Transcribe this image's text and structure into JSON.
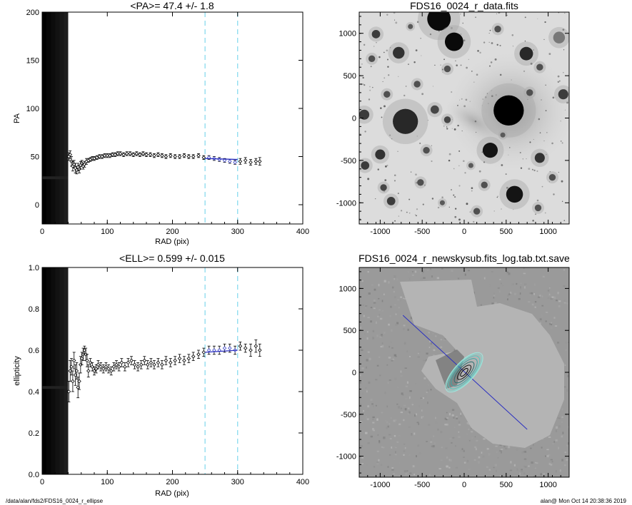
{
  "footer": {
    "left": "/data/alan/fds2/FDS16_0024_r_ellipse",
    "right": "alan@  Mon Oct 14 20:38:36 2019"
  },
  "chart_data": [
    {
      "type": "scatter",
      "title": "<PA>=  47.4 +/-   1.8",
      "xlabel": "RAD (pix)",
      "ylabel": "PA",
      "xlim": [
        0,
        400
      ],
      "ylim": [
        -20,
        200
      ],
      "xticks": [
        "0",
        "100",
        "200",
        "300",
        "400"
      ],
      "yticks": [
        "0",
        "50",
        "100",
        "150",
        "200"
      ],
      "grid": false,
      "vlines": [
        250,
        300
      ],
      "fit_line": {
        "x": [
          250,
          300
        ],
        "y": [
          48,
          47
        ]
      },
      "masked_region": {
        "x": [
          0,
          40
        ]
      },
      "points": [
        {
          "x": 41,
          "y": 50,
          "e": 4
        },
        {
          "x": 43,
          "y": 52,
          "e": 4
        },
        {
          "x": 45,
          "y": 45,
          "e": 5
        },
        {
          "x": 47,
          "y": 40,
          "e": 5
        },
        {
          "x": 49,
          "y": 42,
          "e": 4
        },
        {
          "x": 51,
          "y": 38,
          "e": 5
        },
        {
          "x": 53,
          "y": 36,
          "e": 4
        },
        {
          "x": 55,
          "y": 39,
          "e": 4
        },
        {
          "x": 57,
          "y": 37,
          "e": 4
        },
        {
          "x": 59,
          "y": 41,
          "e": 4
        },
        {
          "x": 61,
          "y": 43,
          "e": 3
        },
        {
          "x": 63,
          "y": 40,
          "e": 3
        },
        {
          "x": 65,
          "y": 42,
          "e": 3
        },
        {
          "x": 68,
          "y": 45,
          "e": 3
        },
        {
          "x": 71,
          "y": 46,
          "e": 2
        },
        {
          "x": 74,
          "y": 47,
          "e": 2
        },
        {
          "x": 77,
          "y": 48,
          "e": 2
        },
        {
          "x": 80,
          "y": 48,
          "e": 2
        },
        {
          "x": 84,
          "y": 49,
          "e": 2
        },
        {
          "x": 88,
          "y": 50,
          "e": 2
        },
        {
          "x": 92,
          "y": 50,
          "e": 2
        },
        {
          "x": 96,
          "y": 51,
          "e": 2
        },
        {
          "x": 100,
          "y": 51,
          "e": 2
        },
        {
          "x": 104,
          "y": 51,
          "e": 2
        },
        {
          "x": 108,
          "y": 52,
          "e": 2
        },
        {
          "x": 112,
          "y": 52,
          "e": 2
        },
        {
          "x": 116,
          "y": 53,
          "e": 2
        },
        {
          "x": 120,
          "y": 53,
          "e": 2
        },
        {
          "x": 125,
          "y": 52,
          "e": 2
        },
        {
          "x": 130,
          "y": 53,
          "e": 2
        },
        {
          "x": 135,
          "y": 53,
          "e": 2
        },
        {
          "x": 140,
          "y": 52,
          "e": 2
        },
        {
          "x": 145,
          "y": 53,
          "e": 2
        },
        {
          "x": 150,
          "y": 52,
          "e": 2
        },
        {
          "x": 155,
          "y": 53,
          "e": 2
        },
        {
          "x": 160,
          "y": 52,
          "e": 2
        },
        {
          "x": 166,
          "y": 52,
          "e": 2
        },
        {
          "x": 172,
          "y": 51,
          "e": 2
        },
        {
          "x": 178,
          "y": 52,
          "e": 2
        },
        {
          "x": 184,
          "y": 51,
          "e": 2
        },
        {
          "x": 190,
          "y": 50,
          "e": 2
        },
        {
          "x": 197,
          "y": 51,
          "e": 2
        },
        {
          "x": 204,
          "y": 50,
          "e": 2
        },
        {
          "x": 211,
          "y": 50,
          "e": 2
        },
        {
          "x": 218,
          "y": 51,
          "e": 2
        },
        {
          "x": 225,
          "y": 50,
          "e": 2
        },
        {
          "x": 232,
          "y": 50,
          "e": 2
        },
        {
          "x": 240,
          "y": 51,
          "e": 2
        },
        {
          "x": 248,
          "y": 49,
          "e": 2
        },
        {
          "x": 256,
          "y": 49,
          "e": 2
        },
        {
          "x": 264,
          "y": 48,
          "e": 2
        },
        {
          "x": 272,
          "y": 47,
          "e": 2
        },
        {
          "x": 280,
          "y": 46,
          "e": 2
        },
        {
          "x": 288,
          "y": 45,
          "e": 2
        },
        {
          "x": 296,
          "y": 44,
          "e": 2
        },
        {
          "x": 304,
          "y": 45,
          "e": 3
        },
        {
          "x": 312,
          "y": 46,
          "e": 3
        },
        {
          "x": 320,
          "y": 44,
          "e": 3
        },
        {
          "x": 328,
          "y": 45,
          "e": 3
        },
        {
          "x": 334,
          "y": 45,
          "e": 4
        }
      ]
    },
    {
      "type": "image",
      "title": "FDS16_0024_r_data.fits",
      "xlim": [
        -1250,
        1250
      ],
      "ylim": [
        -1250,
        1250
      ],
      "xticks": [
        "-1000",
        "-500",
        "0",
        "500",
        "1000"
      ],
      "yticks": [
        "-1000",
        "-500",
        "0",
        "500",
        "1000"
      ],
      "sources": [
        {
          "x": 530,
          "y": 90,
          "r": 18,
          "g": 0
        },
        {
          "x": -300,
          "y": 1170,
          "r": 14,
          "g": 10
        },
        {
          "x": -120,
          "y": 900,
          "r": 11,
          "g": 10
        },
        {
          "x": -700,
          "y": -40,
          "r": 15,
          "g": 40
        },
        {
          "x": 310,
          "y": -380,
          "r": 9,
          "g": 20
        },
        {
          "x": 600,
          "y": -900,
          "r": 10,
          "g": 20
        },
        {
          "x": 740,
          "y": 760,
          "r": 8,
          "g": 40
        },
        {
          "x": -780,
          "y": 770,
          "r": 7,
          "g": 50
        },
        {
          "x": -1050,
          "y": 990,
          "r": 5,
          "g": 60
        },
        {
          "x": 1180,
          "y": 280,
          "r": 6,
          "g": 60
        },
        {
          "x": 900,
          "y": -470,
          "r": 6,
          "g": 50
        },
        {
          "x": -1000,
          "y": -430,
          "r": 6,
          "g": 50
        },
        {
          "x": -1180,
          "y": -560,
          "r": 5,
          "g": 60
        },
        {
          "x": -1190,
          "y": 40,
          "r": 6,
          "g": 60
        },
        {
          "x": -350,
          "y": 100,
          "r": 5,
          "g": 70
        },
        {
          "x": -200,
          "y": -20,
          "r": 4,
          "g": 70
        },
        {
          "x": -520,
          "y": -760,
          "r": 4,
          "g": 80
        },
        {
          "x": -870,
          "y": -980,
          "r": 5,
          "g": 60
        },
        {
          "x": -960,
          "y": -820,
          "r": 4,
          "g": 70
        },
        {
          "x": 240,
          "y": -790,
          "r": 4,
          "g": 80
        },
        {
          "x": 150,
          "y": -1100,
          "r": 4,
          "g": 80
        },
        {
          "x": 880,
          "y": -1060,
          "r": 4,
          "g": 80
        },
        {
          "x": 1130,
          "y": 950,
          "r": 7,
          "g": 120
        },
        {
          "x": 780,
          "y": 300,
          "r": 4,
          "g": 80
        },
        {
          "x": 900,
          "y": 600,
          "r": 4,
          "g": 80
        },
        {
          "x": -200,
          "y": 580,
          "r": 4,
          "g": 80
        },
        {
          "x": -560,
          "y": 400,
          "r": 4,
          "g": 80
        },
        {
          "x": -920,
          "y": 280,
          "r": 4,
          "g": 80
        },
        {
          "x": -450,
          "y": -380,
          "r": 4,
          "g": 80
        },
        {
          "x": 80,
          "y": -560,
          "r": 3,
          "g": 90
        },
        {
          "x": 400,
          "y": 1050,
          "r": 4,
          "g": 80
        },
        {
          "x": -1100,
          "y": 700,
          "r": 4,
          "g": 80
        },
        {
          "x": 1050,
          "y": -700,
          "r": 4,
          "g": 80
        },
        {
          "x": -260,
          "y": -1000,
          "r": 3,
          "g": 90
        },
        {
          "x": 460,
          "y": -200,
          "r": 3,
          "g": 90
        },
        {
          "x": -640,
          "y": 1080,
          "r": 3,
          "g": 90
        }
      ]
    },
    {
      "type": "scatter",
      "title": "<ELL>= 0.599 +/-  0.015",
      "xlabel": "RAD (pix)",
      "ylabel": "ellipticity",
      "xlim": [
        0,
        400
      ],
      "ylim": [
        0,
        1
      ],
      "xticks": [
        "0",
        "100",
        "200",
        "300",
        "400"
      ],
      "yticks": [
        "0.0",
        "0.2",
        "0.4",
        "0.6",
        "0.8",
        "1.0"
      ],
      "grid": false,
      "vlines": [
        250,
        300
      ],
      "fit_line": {
        "x": [
          250,
          300
        ],
        "y": [
          0.59,
          0.6
        ]
      },
      "masked_region": {
        "x": [
          0,
          40
        ]
      },
      "points": [
        {
          "x": 41,
          "y": 0.4,
          "e": 0.05
        },
        {
          "x": 43,
          "y": 0.5,
          "e": 0.05
        },
        {
          "x": 45,
          "y": 0.52,
          "e": 0.04
        },
        {
          "x": 47,
          "y": 0.45,
          "e": 0.05
        },
        {
          "x": 49,
          "y": 0.55,
          "e": 0.04
        },
        {
          "x": 51,
          "y": 0.48,
          "e": 0.05
        },
        {
          "x": 53,
          "y": 0.5,
          "e": 0.04
        },
        {
          "x": 55,
          "y": 0.42,
          "e": 0.05
        },
        {
          "x": 57,
          "y": 0.45,
          "e": 0.04
        },
        {
          "x": 59,
          "y": 0.53,
          "e": 0.04
        },
        {
          "x": 61,
          "y": 0.56,
          "e": 0.03
        },
        {
          "x": 63,
          "y": 0.58,
          "e": 0.03
        },
        {
          "x": 65,
          "y": 0.6,
          "e": 0.02
        },
        {
          "x": 67,
          "y": 0.58,
          "e": 0.03
        },
        {
          "x": 69,
          "y": 0.55,
          "e": 0.03
        },
        {
          "x": 71,
          "y": 0.5,
          "e": 0.03
        },
        {
          "x": 74,
          "y": 0.54,
          "e": 0.02
        },
        {
          "x": 77,
          "y": 0.52,
          "e": 0.02
        },
        {
          "x": 80,
          "y": 0.5,
          "e": 0.02
        },
        {
          "x": 83,
          "y": 0.51,
          "e": 0.02
        },
        {
          "x": 86,
          "y": 0.53,
          "e": 0.02
        },
        {
          "x": 90,
          "y": 0.52,
          "e": 0.02
        },
        {
          "x": 94,
          "y": 0.51,
          "e": 0.02
        },
        {
          "x": 98,
          "y": 0.52,
          "e": 0.02
        },
        {
          "x": 102,
          "y": 0.51,
          "e": 0.02
        },
        {
          "x": 106,
          "y": 0.5,
          "e": 0.02
        },
        {
          "x": 110,
          "y": 0.52,
          "e": 0.02
        },
        {
          "x": 114,
          "y": 0.53,
          "e": 0.02
        },
        {
          "x": 118,
          "y": 0.52,
          "e": 0.02
        },
        {
          "x": 122,
          "y": 0.54,
          "e": 0.02
        },
        {
          "x": 127,
          "y": 0.52,
          "e": 0.02
        },
        {
          "x": 132,
          "y": 0.54,
          "e": 0.02
        },
        {
          "x": 137,
          "y": 0.55,
          "e": 0.02
        },
        {
          "x": 142,
          "y": 0.53,
          "e": 0.02
        },
        {
          "x": 147,
          "y": 0.52,
          "e": 0.02
        },
        {
          "x": 152,
          "y": 0.53,
          "e": 0.02
        },
        {
          "x": 157,
          "y": 0.55,
          "e": 0.02
        },
        {
          "x": 162,
          "y": 0.53,
          "e": 0.02
        },
        {
          "x": 167,
          "y": 0.54,
          "e": 0.02
        },
        {
          "x": 172,
          "y": 0.53,
          "e": 0.02
        },
        {
          "x": 178,
          "y": 0.54,
          "e": 0.02
        },
        {
          "x": 184,
          "y": 0.53,
          "e": 0.02
        },
        {
          "x": 190,
          "y": 0.55,
          "e": 0.02
        },
        {
          "x": 197,
          "y": 0.54,
          "e": 0.02
        },
        {
          "x": 204,
          "y": 0.55,
          "e": 0.02
        },
        {
          "x": 211,
          "y": 0.56,
          "e": 0.02
        },
        {
          "x": 218,
          "y": 0.55,
          "e": 0.02
        },
        {
          "x": 225,
          "y": 0.56,
          "e": 0.02
        },
        {
          "x": 232,
          "y": 0.57,
          "e": 0.02
        },
        {
          "x": 240,
          "y": 0.58,
          "e": 0.02
        },
        {
          "x": 248,
          "y": 0.59,
          "e": 0.02
        },
        {
          "x": 256,
          "y": 0.6,
          "e": 0.02
        },
        {
          "x": 264,
          "y": 0.6,
          "e": 0.02
        },
        {
          "x": 272,
          "y": 0.6,
          "e": 0.02
        },
        {
          "x": 280,
          "y": 0.61,
          "e": 0.02
        },
        {
          "x": 288,
          "y": 0.61,
          "e": 0.02
        },
        {
          "x": 296,
          "y": 0.6,
          "e": 0.02
        },
        {
          "x": 304,
          "y": 0.62,
          "e": 0.02
        },
        {
          "x": 312,
          "y": 0.61,
          "e": 0.02
        },
        {
          "x": 320,
          "y": 0.6,
          "e": 0.03
        },
        {
          "x": 328,
          "y": 0.62,
          "e": 0.03
        },
        {
          "x": 334,
          "y": 0.6,
          "e": 0.03
        }
      ]
    },
    {
      "type": "image",
      "title": "FDS16_0024_r_newskysub.fits_log.tab.txt.save",
      "xlim": [
        -1250,
        1250
      ],
      "ylim": [
        -1250,
        1250
      ],
      "xticks": [
        "-1000",
        "-500",
        "0",
        "500",
        "1000"
      ],
      "yticks": [
        "-1000",
        "-500",
        "0",
        "500",
        "1000"
      ],
      "major_axis_line": {
        "x": [
          -730,
          750
        ],
        "y": [
          680,
          -680
        ]
      },
      "ellipse_center": [
        0,
        0
      ],
      "ellipse_pa_deg": 47.4,
      "ellipse_ell": 0.6,
      "ellipse_radii": [
        60,
        110,
        160,
        210,
        250,
        280,
        300
      ]
    }
  ]
}
